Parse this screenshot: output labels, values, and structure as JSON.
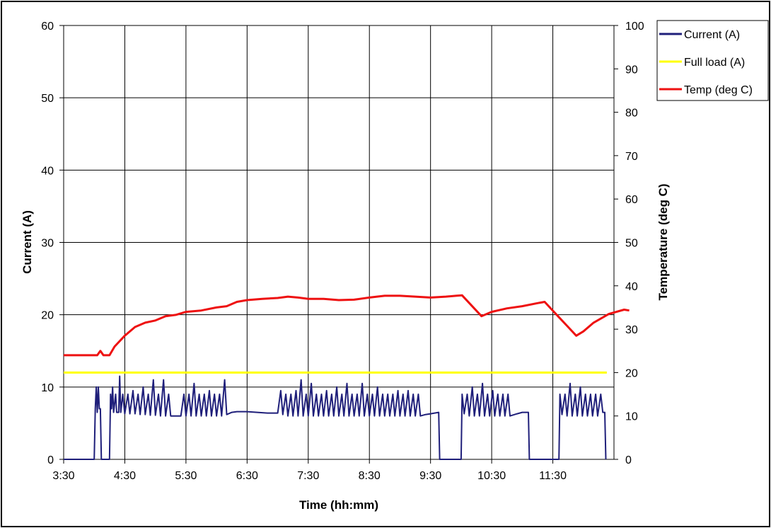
{
  "chart_data": {
    "type": "line",
    "xlabel": "Time (hh:mm)",
    "ylabel": "Current (A)",
    "y2label": "Temperature (deg C)",
    "x_ticks": [
      "3:30",
      "4:30",
      "5:30",
      "6:30",
      "7:30",
      "8:30",
      "9:30",
      "10:30",
      "11:30"
    ],
    "x_range": [
      "3:30",
      "12:30"
    ],
    "ylim": [
      0,
      60
    ],
    "y_ticks": [
      0,
      10,
      20,
      30,
      40,
      50,
      60
    ],
    "y2lim": [
      0,
      100
    ],
    "y2_ticks": [
      0,
      10,
      20,
      30,
      40,
      50,
      60,
      70,
      80,
      90,
      100
    ],
    "grid": true,
    "legend_position": "top-right",
    "series": [
      {
        "name": "Current (A)",
        "axis": "left",
        "color": "#1f1f7a",
        "points": [
          [
            "3:30",
            0
          ],
          [
            "4:00",
            0
          ],
          [
            "4:01",
            7
          ],
          [
            "4:02",
            10
          ],
          [
            "4:03",
            6.5
          ],
          [
            "4:04",
            10
          ],
          [
            "4:05",
            7
          ],
          [
            "4:06",
            7
          ],
          [
            "4:07",
            0
          ],
          [
            "4:15",
            0
          ],
          [
            "4:16",
            9
          ],
          [
            "4:17",
            7
          ],
          [
            "4:18",
            10
          ],
          [
            "4:19",
            6.5
          ],
          [
            "4:21",
            9
          ],
          [
            "4:22",
            6.5
          ],
          [
            "4:24",
            6.5
          ],
          [
            "4:25",
            11.5
          ],
          [
            "4:26",
            6.5
          ],
          [
            "4:28",
            9
          ],
          [
            "4:30",
            6.3
          ],
          [
            "4:33",
            9
          ],
          [
            "4:35",
            6.3
          ],
          [
            "4:38",
            9.5
          ],
          [
            "4:40",
            6.3
          ],
          [
            "4:43",
            9
          ],
          [
            "4:45",
            6.2
          ],
          [
            "4:48",
            10
          ],
          [
            "4:50",
            6.2
          ],
          [
            "4:53",
            9
          ],
          [
            "4:55",
            6.1
          ],
          [
            "4:58",
            11
          ],
          [
            "5:00",
            6.1
          ],
          [
            "5:03",
            9
          ],
          [
            "5:05",
            6.0
          ],
          [
            "5:08",
            11
          ],
          [
            "5:10",
            6.0
          ],
          [
            "5:13",
            9
          ],
          [
            "5:15",
            6.0
          ],
          [
            "5:20",
            6.0
          ],
          [
            "5:25",
            6.0
          ],
          [
            "5:28",
            9
          ],
          [
            "5:30",
            6.0
          ],
          [
            "5:33",
            9
          ],
          [
            "5:35",
            6.0
          ],
          [
            "5:38",
            10.5
          ],
          [
            "5:40",
            6.0
          ],
          [
            "5:43",
            9
          ],
          [
            "5:45",
            6.0
          ],
          [
            "5:48",
            9
          ],
          [
            "5:50",
            6.0
          ],
          [
            "5:53",
            9.5
          ],
          [
            "5:55",
            6.0
          ],
          [
            "5:58",
            9
          ],
          [
            "6:00",
            6.0
          ],
          [
            "6:03",
            9
          ],
          [
            "6:05",
            6.0
          ],
          [
            "6:08",
            11
          ],
          [
            "6:10",
            6.2
          ],
          [
            "6:15",
            6.5
          ],
          [
            "6:20",
            6.6
          ],
          [
            "6:30",
            6.6
          ],
          [
            "6:40",
            6.5
          ],
          [
            "6:50",
            6.4
          ],
          [
            "7:00",
            6.4
          ],
          [
            "7:03",
            9.5
          ],
          [
            "7:05",
            6.2
          ],
          [
            "7:08",
            9
          ],
          [
            "7:10",
            6.0
          ],
          [
            "7:13",
            9
          ],
          [
            "7:15",
            6.0
          ],
          [
            "7:18",
            9.5
          ],
          [
            "7:20",
            6.0
          ],
          [
            "7:23",
            11
          ],
          [
            "7:25",
            6.0
          ],
          [
            "7:28",
            9
          ],
          [
            "7:30",
            6.0
          ],
          [
            "7:33",
            10.5
          ],
          [
            "7:35",
            6.0
          ],
          [
            "7:38",
            9
          ],
          [
            "7:40",
            6.0
          ],
          [
            "7:43",
            9
          ],
          [
            "7:45",
            6.0
          ],
          [
            "7:48",
            9.5
          ],
          [
            "7:50",
            6.0
          ],
          [
            "7:53",
            9
          ],
          [
            "7:55",
            6.0
          ],
          [
            "7:58",
            10
          ],
          [
            "8:00",
            6.0
          ],
          [
            "8:03",
            9
          ],
          [
            "8:05",
            6.0
          ],
          [
            "8:08",
            10.5
          ],
          [
            "8:10",
            6.0
          ],
          [
            "8:13",
            9
          ],
          [
            "8:15",
            6.0
          ],
          [
            "8:18",
            9
          ],
          [
            "8:20",
            6.0
          ],
          [
            "8:23",
            10.5
          ],
          [
            "8:25",
            6.0
          ],
          [
            "8:28",
            9
          ],
          [
            "8:30",
            6.0
          ],
          [
            "8:33",
            9
          ],
          [
            "8:35",
            6.0
          ],
          [
            "8:38",
            10
          ],
          [
            "8:40",
            6.0
          ],
          [
            "8:43",
            9
          ],
          [
            "8:45",
            6.0
          ],
          [
            "8:48",
            9
          ],
          [
            "8:50",
            6.0
          ],
          [
            "8:53",
            9
          ],
          [
            "8:55",
            6.0
          ],
          [
            "8:58",
            9.5
          ],
          [
            "9:00",
            6.0
          ],
          [
            "9:03",
            9
          ],
          [
            "9:05",
            6.0
          ],
          [
            "9:08",
            9.5
          ],
          [
            "9:10",
            6.0
          ],
          [
            "9:13",
            9
          ],
          [
            "9:15",
            6.0
          ],
          [
            "9:18",
            9
          ],
          [
            "9:20",
            6.0
          ],
          [
            "9:25",
            6.2
          ],
          [
            "9:30",
            6.3
          ],
          [
            "9:38",
            6.5
          ],
          [
            "9:39",
            0
          ],
          [
            "10:00",
            0
          ],
          [
            "10:01",
            9
          ],
          [
            "10:03",
            6.3
          ],
          [
            "10:06",
            9
          ],
          [
            "10:08",
            6.0
          ],
          [
            "10:11",
            10
          ],
          [
            "10:13",
            6.0
          ],
          [
            "10:16",
            9
          ],
          [
            "10:18",
            6.0
          ],
          [
            "10:21",
            10.5
          ],
          [
            "10:23",
            6.0
          ],
          [
            "10:26",
            9
          ],
          [
            "10:28",
            6.0
          ],
          [
            "10:31",
            9.5
          ],
          [
            "10:33",
            6.0
          ],
          [
            "10:36",
            9
          ],
          [
            "10:38",
            6.0
          ],
          [
            "10:41",
            9
          ],
          [
            "10:43",
            6.0
          ],
          [
            "10:46",
            9
          ],
          [
            "10:48",
            6.0
          ],
          [
            "10:55",
            6.3
          ],
          [
            "11:00",
            6.5
          ],
          [
            "11:06",
            6.5
          ],
          [
            "11:07",
            0
          ],
          [
            "11:36",
            0
          ],
          [
            "11:37",
            9
          ],
          [
            "11:39",
            6.2
          ],
          [
            "11:42",
            9
          ],
          [
            "11:44",
            6.0
          ],
          [
            "11:47",
            10.5
          ],
          [
            "11:49",
            6.0
          ],
          [
            "11:52",
            9
          ],
          [
            "11:54",
            6.0
          ],
          [
            "11:57",
            10
          ],
          [
            "11:59",
            6.0
          ],
          [
            "12:02",
            9
          ],
          [
            "12:04",
            6.0
          ],
          [
            "12:07",
            9
          ],
          [
            "12:09",
            6.0
          ],
          [
            "12:12",
            9
          ],
          [
            "12:14",
            6.0
          ],
          [
            "12:17",
            9
          ],
          [
            "12:19",
            6.5
          ],
          [
            "12:21",
            6.5
          ],
          [
            "12:22",
            0
          ]
        ]
      },
      {
        "name": "Full load (A)",
        "axis": "left",
        "color": "#ffff00",
        "points": [
          [
            "3:30",
            12
          ],
          [
            "12:23",
            12
          ]
        ]
      },
      {
        "name": "Temp (deg C)",
        "axis": "right",
        "color": "#ee1111",
        "points": [
          [
            "3:30",
            24
          ],
          [
            "4:03",
            24
          ],
          [
            "4:06",
            25
          ],
          [
            "4:09",
            24
          ],
          [
            "4:15",
            24
          ],
          [
            "4:20",
            26
          ],
          [
            "4:30",
            28.5
          ],
          [
            "4:40",
            30.5
          ],
          [
            "4:50",
            31.5
          ],
          [
            "5:00",
            32
          ],
          [
            "5:10",
            33
          ],
          [
            "5:20",
            33.3
          ],
          [
            "5:30",
            34
          ],
          [
            "5:45",
            34.3
          ],
          [
            "6:00",
            35
          ],
          [
            "6:10",
            35.3
          ],
          [
            "6:20",
            36.3
          ],
          [
            "6:30",
            36.7
          ],
          [
            "6:45",
            37
          ],
          [
            "7:00",
            37.2
          ],
          [
            "7:10",
            37.5
          ],
          [
            "7:20",
            37.3
          ],
          [
            "7:30",
            37
          ],
          [
            "7:45",
            37
          ],
          [
            "8:00",
            36.7
          ],
          [
            "8:15",
            36.8
          ],
          [
            "8:30",
            37.3
          ],
          [
            "8:45",
            37.7
          ],
          [
            "9:00",
            37.7
          ],
          [
            "9:15",
            37.5
          ],
          [
            "9:30",
            37.3
          ],
          [
            "9:45",
            37.5
          ],
          [
            "9:55",
            37.7
          ],
          [
            "10:01",
            37.8
          ],
          [
            "10:20",
            33
          ],
          [
            "10:30",
            34
          ],
          [
            "10:45",
            34.8
          ],
          [
            "11:00",
            35.3
          ],
          [
            "11:15",
            36
          ],
          [
            "11:22",
            36.3
          ],
          [
            "11:35",
            33
          ],
          [
            "11:45",
            30.5
          ],
          [
            "11:53",
            28.5
          ],
          [
            "12:00",
            29.5
          ],
          [
            "12:10",
            31.5
          ],
          [
            "12:25",
            33.5
          ],
          [
            "12:40",
            34.5
          ],
          [
            "12:45",
            34.3
          ]
        ]
      }
    ]
  }
}
